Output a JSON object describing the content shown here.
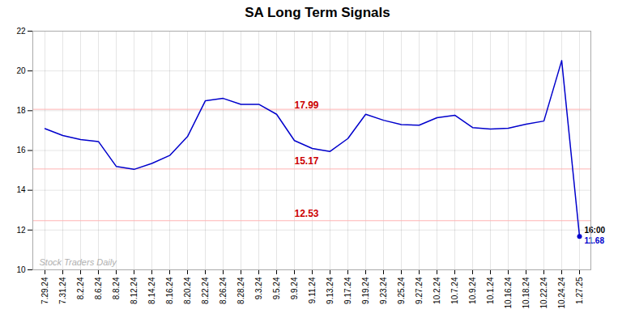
{
  "chart_data": {
    "type": "line",
    "title": "SA Long Term Signals",
    "categories": [
      "7.29.24",
      "7.31.24",
      "8.2.24",
      "8.6.24",
      "8.8.24",
      "8.12.24",
      "8.14.24",
      "8.16.24",
      "8.20.24",
      "8.22.24",
      "8.26.24",
      "8.28.24",
      "9.3.24",
      "9.5.24",
      "9.9.24",
      "9.11.24",
      "9.13.24",
      "9.17.24",
      "9.19.24",
      "9.23.24",
      "9.25.24",
      "9.27.24",
      "10.2.24",
      "10.7.24",
      "10.9.24",
      "10.1.24",
      "10.16.24",
      "10.18.24",
      "10.22.24",
      "10.24.24",
      "1.27.25"
    ],
    "values": [
      17.1,
      16.75,
      16.55,
      16.45,
      15.2,
      15.05,
      15.35,
      15.75,
      16.7,
      18.5,
      18.62,
      18.32,
      18.32,
      17.82,
      16.5,
      16.1,
      15.95,
      16.6,
      17.82,
      17.52,
      17.3,
      17.27,
      17.65,
      17.77,
      17.15,
      17.08,
      17.12,
      17.32,
      17.48,
      20.52,
      11.68
    ],
    "color": "#0000cc",
    "hlines": {
      "values": [
        18.07,
        15.07,
        12.47
      ],
      "color": "#ffb3b3"
    },
    "annotations": [
      {
        "text": "17.99",
        "x": "9.9.24",
        "y": 17.99,
        "color": "#cc0000"
      },
      {
        "text": "15.17",
        "x": "9.9.24",
        "y": 15.17,
        "color": "#cc0000"
      },
      {
        "text": "12.53",
        "x": "9.9.24",
        "y": 12.53,
        "color": "#cc0000"
      }
    ],
    "end_labels": [
      {
        "text": "16:00",
        "color": "#000000"
      },
      {
        "text": "11.68",
        "color": "#0000cc"
      }
    ],
    "watermark": {
      "text": "Stock Traders Daily",
      "color": "#b0b0b0"
    },
    "ylim": [
      10,
      22
    ],
    "yticks": [
      10,
      12,
      14,
      16,
      18,
      20,
      22
    ],
    "grid": true
  }
}
